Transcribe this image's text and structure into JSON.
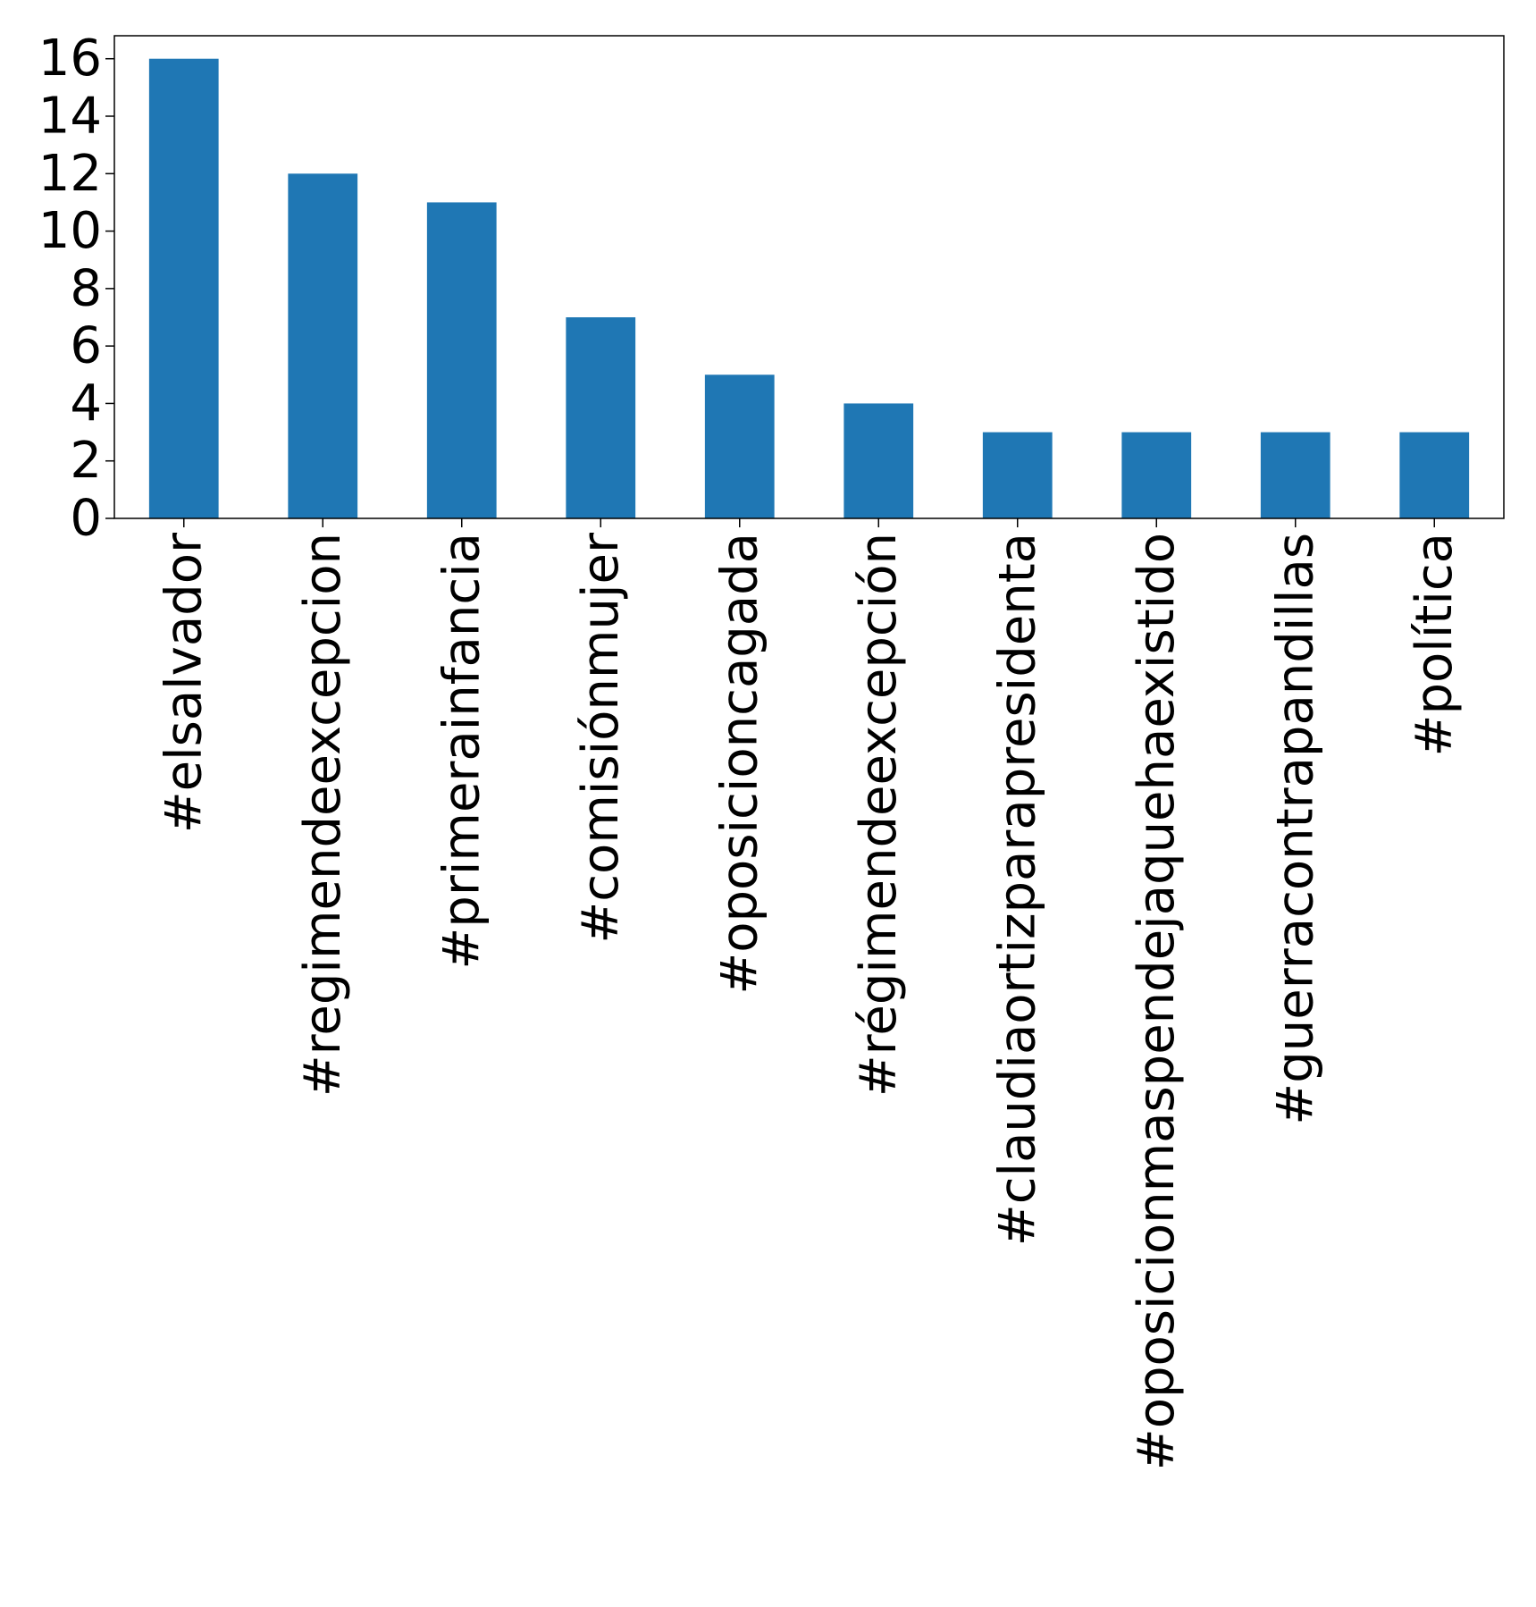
{
  "chart_data": {
    "type": "bar",
    "title": "",
    "xlabel": "",
    "ylabel": "",
    "categories": [
      "#elsalvador",
      "#regimendeexcepcion",
      "#primerainfancia",
      "#comisiónmujer",
      "#oposicioncagada",
      "#régimendeexcepción",
      "#claudiaortizparapresidenta",
      "#oposicionmaspendejaquehaexistido",
      "#guerracontrapandillas",
      "#política"
    ],
    "values": [
      16,
      12,
      11,
      7,
      5,
      4,
      3,
      3,
      3,
      3
    ],
    "ylim": [
      0,
      16.8
    ],
    "yticks": [
      0,
      2,
      4,
      6,
      8,
      10,
      12,
      14,
      16
    ],
    "bar_color": "#1f77b4",
    "grid": false,
    "legend": "none"
  }
}
